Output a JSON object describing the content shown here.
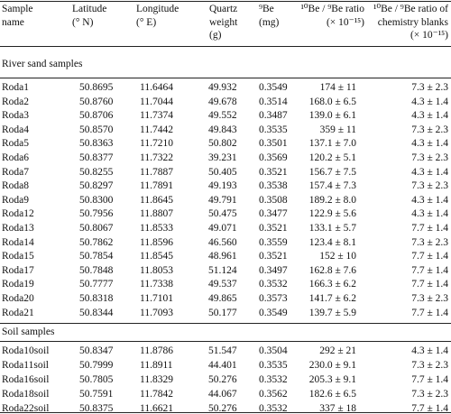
{
  "table": {
    "columns": [
      [
        "Sample",
        "name"
      ],
      [
        "Latitude",
        "(° N)"
      ],
      [
        "Longitude",
        "(° E)"
      ],
      [
        "Quartz",
        "weight",
        "(g)"
      ],
      [
        "⁹Be",
        "(mg)"
      ],
      [
        "¹⁰Be / ⁹Be ratio",
        "(× 10⁻¹⁵)"
      ],
      [
        "¹⁰Be / ⁹Be ratio of",
        "chemistry blanks",
        "(× 10⁻¹⁵)"
      ]
    ],
    "sections": [
      {
        "title": "River sand samples",
        "rows": [
          [
            "Roda1",
            "50.8695",
            "11.6464",
            "49.932",
            "0.3549",
            "174 ± 11",
            "7.3 ± 2.3"
          ],
          [
            "Roda2",
            "50.8760",
            "11.7044",
            "49.678",
            "0.3514",
            "168.0 ± 6.5",
            "4.3 ± 1.4"
          ],
          [
            "Roda3",
            "50.8706",
            "11.7374",
            "49.552",
            "0.3487",
            "139.0 ± 6.1",
            "4.3 ± 1.4"
          ],
          [
            "Roda4",
            "50.8570",
            "11.7442",
            "49.843",
            "0.3535",
            "359 ± 11",
            "7.3 ± 2.3"
          ],
          [
            "Roda5",
            "50.8363",
            "11.7210",
            "50.802",
            "0.3501",
            "137.1 ± 7.0",
            "4.3 ± 1.4"
          ],
          [
            "Roda6",
            "50.8377",
            "11.7322",
            "39.231",
            "0.3569",
            "120.2 ± 5.1",
            "7.3 ± 2.3"
          ],
          [
            "Roda7",
            "50.8255",
            "11.7887",
            "50.405",
            "0.3521",
            "156.7 ± 7.5",
            "4.3 ± 1.4"
          ],
          [
            "Roda8",
            "50.8297",
            "11.7891",
            "49.193",
            "0.3538",
            "157.4 ± 7.3",
            "7.3 ± 2.3"
          ],
          [
            "Roda9",
            "50.8300",
            "11.8645",
            "49.791",
            "0.3508",
            "189.2 ± 8.0",
            "4.3 ± 1.4"
          ],
          [
            "Roda12",
            "50.7956",
            "11.8807",
            "50.475",
            "0.3477",
            "122.9 ± 5.6",
            "4.3 ± 1.4"
          ],
          [
            "Roda13",
            "50.8067",
            "11.8533",
            "49.071",
            "0.3521",
            "133.1 ± 5.7",
            "7.7 ± 1.4"
          ],
          [
            "Roda14",
            "50.7862",
            "11.8596",
            "46.560",
            "0.3559",
            "123.4 ± 8.1",
            "7.3 ± 2.3"
          ],
          [
            "Roda15",
            "50.7854",
            "11.8545",
            "48.961",
            "0.3521",
            "152 ± 10",
            "7.7 ± 1.4"
          ],
          [
            "Roda17",
            "50.7848",
            "11.8053",
            "51.124",
            "0.3497",
            "162.8 ± 7.6",
            "7.7 ± 1.4"
          ],
          [
            "Roda19",
            "50.7777",
            "11.7338",
            "49.537",
            "0.3532",
            "166.3 ± 6.2",
            "7.7 ± 1.4"
          ],
          [
            "Roda20",
            "50.8318",
            "11.7101",
            "49.865",
            "0.3573",
            "141.7 ± 6.2",
            "7.3 ± 2.3"
          ],
          [
            "Roda21",
            "50.8344",
            "11.7093",
            "50.177",
            "0.3549",
            "139.7 ± 5.9",
            "7.7 ± 1.4"
          ]
        ]
      },
      {
        "title": "Soil samples",
        "rows": [
          [
            "Roda10soil",
            "50.8347",
            "11.8786",
            "51.547",
            "0.3504",
            "292 ± 21",
            "4.3 ± 1.4"
          ],
          [
            "Roda11soil",
            "50.7999",
            "11.8911",
            "44.401",
            "0.3535",
            "230.0 ± 9.1",
            "7.3 ± 2.3"
          ],
          [
            "Roda16soil",
            "50.7805",
            "11.8329",
            "50.276",
            "0.3532",
            "205.3 ± 9.1",
            "7.7 ± 1.4"
          ],
          [
            "Roda18soil",
            "50.7591",
            "11.7842",
            "44.067",
            "0.3562",
            "182.6 ± 6.5",
            "7.3 ± 2.3"
          ],
          [
            "Roda22soil",
            "50.8375",
            "11.6621",
            "50.276",
            "0.3532",
            "337 ± 18",
            "7.7 ± 1.4"
          ]
        ]
      }
    ]
  }
}
